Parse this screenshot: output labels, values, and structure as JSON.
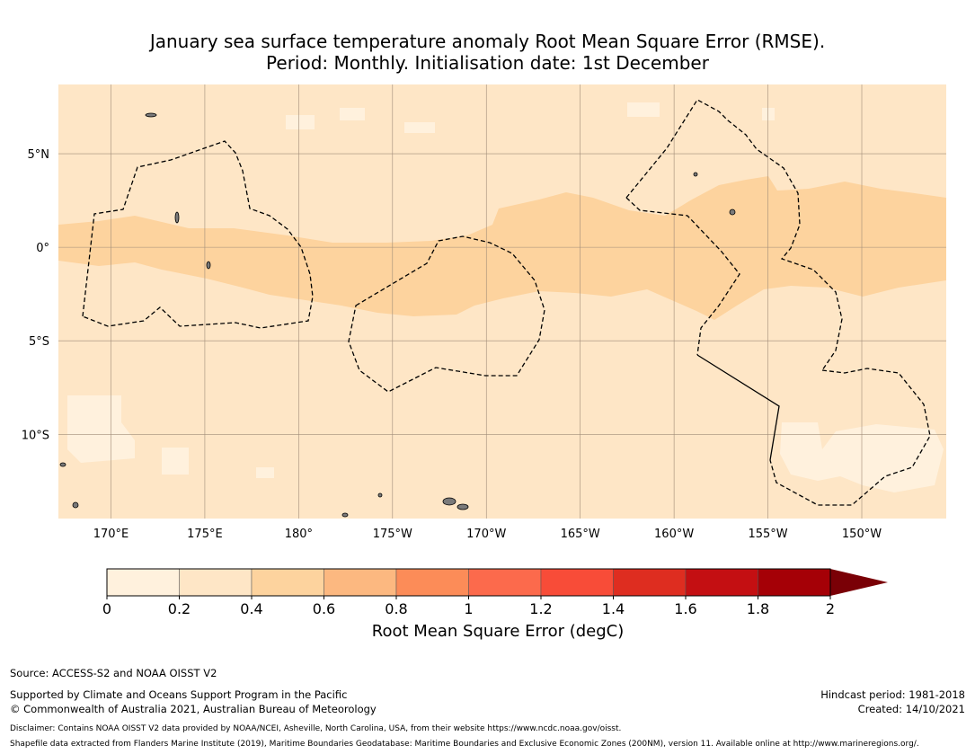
{
  "title": {
    "line1": "January sea surface temperature anomaly Root Mean Square Error (RMSE).",
    "line2": "Period: Monthly. Initialisation date: 1st December"
  },
  "map": {
    "lon_range": [
      167.2,
      214.5
    ],
    "lat_range": [
      -14.5,
      8.7
    ],
    "y_ticks": [
      {
        "lat": 5,
        "label": "5°N"
      },
      {
        "lat": 0,
        "label": "0°"
      },
      {
        "lat": -5,
        "label": "5°S"
      },
      {
        "lat": -10,
        "label": "10°S"
      }
    ],
    "x_ticks": [
      {
        "lon": 170,
        "label": "170°E"
      },
      {
        "lon": 175,
        "label": "175°E"
      },
      {
        "lon": 180,
        "label": "180°"
      },
      {
        "lon": 185,
        "label": "175°W"
      },
      {
        "lon": 190,
        "label": "170°W"
      },
      {
        "lon": 195,
        "label": "165°W"
      },
      {
        "lon": 200,
        "label": "160°W"
      },
      {
        "lon": 205,
        "label": "155°W"
      },
      {
        "lon": 210,
        "label": "150°W"
      }
    ],
    "grid": true,
    "dominant_rmse_band": "0.2-0.4",
    "equatorial_band_rmse": "0.4-0.6",
    "eez_boundaries": [
      "Kiribati (Gilbert Islands)",
      "Kiribati (Phoenix Islands)",
      "Kiribati (Line Islands)",
      "French Polynesia"
    ]
  },
  "colorbar": {
    "label": "Root Mean Square Error (degC)",
    "ticks": [
      "0",
      "0.2",
      "0.4",
      "0.6",
      "0.8",
      "1",
      "1.2",
      "1.4",
      "1.6",
      "1.8",
      "2"
    ],
    "colors": [
      "#fff1dd",
      "#fee6c6",
      "#fdd39e",
      "#fcb880",
      "#fc8c58",
      "#fc6a4c",
      "#f84c38",
      "#de2d20",
      "#c40f12",
      "#a50006"
    ],
    "extend_color": "#7a0006",
    "extend": "max"
  },
  "footer": {
    "source": "Source: ACCESS-S2 and NOAA OISST V2",
    "supported": "Supported by Climate and Oceans Support Program in the Pacific",
    "copyright": "© Commonwealth of Australia 2021, Australian Bureau of Meteorology",
    "hindcast": "Hindcast period: 1981-2018",
    "created": "Created: 14/10/2021",
    "disclaimer": "Disclaimer: Contains NOAA OISST V2 data provided by NOAA/NCEI, Asheville, North Carolina, USA, from their website https://www.ncdc.noaa.gov/oisst.",
    "shapefile": "Shapefile data extracted from Flanders Marine Institute (2019), Maritime Boundaries Geodatabase: Maritime Boundaries and Exclusive Economic Zones (200NM), version 11. Available online at http://www.marineregions.org/."
  }
}
